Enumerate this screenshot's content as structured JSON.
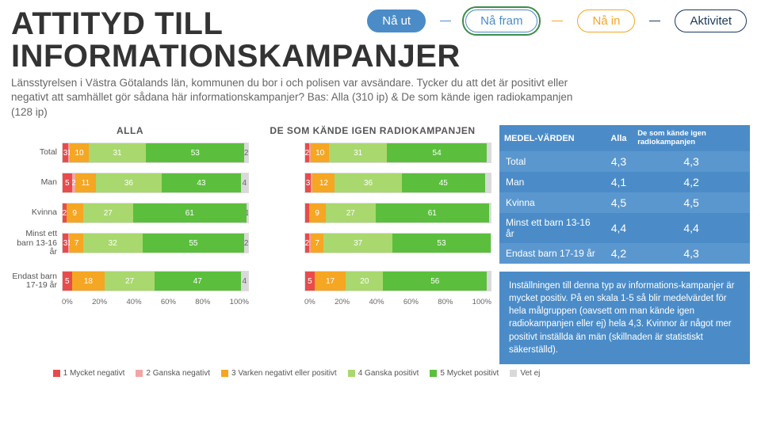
{
  "nav": {
    "out": "Nå ut",
    "fram": "Nå fram",
    "in": "Nå in",
    "akt": "Aktivitet",
    "dash_color": "#4b8cc8"
  },
  "title_line1": "ATTITYD TILL",
  "title_line2": "INFORMATIONSKAMPANJER",
  "intro": "Länsstyrelsen i Västra Götalands län, kommunen du bor i och polisen var avsändare. Tycker du att det är positivt eller negativt att samhället gör sådana här informationskampanjer? Bas: Alla (310 ip) & De som kände igen radiokampanjen (128 ip)",
  "legend": [
    {
      "label": "1 Mycket negativt",
      "color": "#e84b4b"
    },
    {
      "label": "2 Ganska negativt",
      "color": "#f2a6a6"
    },
    {
      "label": "3 Varken negativt eller positivt",
      "color": "#f5a623"
    },
    {
      "label": "4 Ganska positivt",
      "color": "#a9d86e"
    },
    {
      "label": "5 Mycket positivt",
      "color": "#5bbf3d"
    },
    {
      "label": "Vet ej",
      "color": "#d9d9d9"
    }
  ],
  "axis_ticks": [
    "0%",
    "20%",
    "40%",
    "60%",
    "80%",
    "100%"
  ],
  "charts": {
    "left": {
      "title": "ALLA",
      "groups": [
        {
          "label": "Total",
          "segments": [
            {
              "v": 3,
              "c": "#e84b4b",
              "t": "3"
            },
            {
              "v": 1,
              "c": "#f2a6a6",
              "t": "1"
            },
            {
              "v": 10,
              "c": "#f5a623",
              "t": "10"
            },
            {
              "v": 31,
              "c": "#a9d86e",
              "t": "31"
            },
            {
              "v": 53,
              "c": "#5bbf3d",
              "t": "53"
            },
            {
              "v": 2,
              "c": "#d9d9d9",
              "t": "2"
            }
          ]
        },
        {
          "label": "Man",
          "segments": [
            {
              "v": 5,
              "c": "#e84b4b",
              "t": "5"
            },
            {
              "v": 2,
              "c": "#f2a6a6",
              "t": "2"
            },
            {
              "v": 11,
              "c": "#f5a623",
              "t": "11"
            },
            {
              "v": 36,
              "c": "#a9d86e",
              "t": "36"
            },
            {
              "v": 43,
              "c": "#5bbf3d",
              "t": "43"
            },
            {
              "v": 4,
              "c": "#d9d9d9",
              "t": "4"
            }
          ]
        },
        {
          "label": "Kvinna",
          "segments": [
            {
              "v": 2,
              "c": "#e84b4b",
              "t": "2"
            },
            {
              "v": 0,
              "c": "#f2a6a6",
              "t": ""
            },
            {
              "v": 9,
              "c": "#f5a623",
              "t": "9"
            },
            {
              "v": 27,
              "c": "#a9d86e",
              "t": "27"
            },
            {
              "v": 61,
              "c": "#5bbf3d",
              "t": "61"
            },
            {
              "v": 1,
              "c": "#d9d9d9",
              "t": "1"
            }
          ]
        },
        {
          "label": "Minst ett barn 13-16 år",
          "segments": [
            {
              "v": 3,
              "c": "#e84b4b",
              "t": "3"
            },
            {
              "v": 1,
              "c": "#f2a6a6",
              "t": "1"
            },
            {
              "v": 7,
              "c": "#f5a623",
              "t": "7"
            },
            {
              "v": 32,
              "c": "#a9d86e",
              "t": "32"
            },
            {
              "v": 55,
              "c": "#5bbf3d",
              "t": "55"
            },
            {
              "v": 2,
              "c": "#d9d9d9",
              "t": "2"
            }
          ]
        }
      ],
      "group2": [
        {
          "label": "Endast barn 17-19 år",
          "segments": [
            {
              "v": 5,
              "c": "#e84b4b",
              "t": "5"
            },
            {
              "v": 0,
              "c": "#f2a6a6",
              "t": ""
            },
            {
              "v": 18,
              "c": "#f5a623",
              "t": "18"
            },
            {
              "v": 27,
              "c": "#a9d86e",
              "t": "27"
            },
            {
              "v": 47,
              "c": "#5bbf3d",
              "t": "47"
            },
            {
              "v": 4,
              "c": "#d9d9d9",
              "t": "4"
            }
          ]
        }
      ]
    },
    "right": {
      "title": "DE SOM KÄNDE IGEN RADIOKAMPANJEN",
      "groups": [
        {
          "label": "",
          "segments": [
            {
              "v": 2,
              "c": "#e84b4b",
              "t": "2"
            },
            {
              "v": 1,
              "c": "#f2a6a6",
              "t": ""
            },
            {
              "v": 10,
              "c": "#f5a623",
              "t": "10"
            },
            {
              "v": 31,
              "c": "#a9d86e",
              "t": "31"
            },
            {
              "v": 54,
              "c": "#5bbf3d",
              "t": "54"
            },
            {
              "v": 2,
              "c": "#d9d9d9",
              "t": ""
            }
          ]
        },
        {
          "label": "",
          "segments": [
            {
              "v": 3,
              "c": "#e84b4b",
              "t": "3"
            },
            {
              "v": 1,
              "c": "#f2a6a6",
              "t": ""
            },
            {
              "v": 12,
              "c": "#f5a623",
              "t": "12"
            },
            {
              "v": 36,
              "c": "#a9d86e",
              "t": "36"
            },
            {
              "v": 45,
              "c": "#5bbf3d",
              "t": "45"
            },
            {
              "v": 3,
              "c": "#d9d9d9",
              "t": ""
            }
          ]
        },
        {
          "label": "",
          "segments": [
            {
              "v": 2,
              "c": "#e84b4b",
              "t": ""
            },
            {
              "v": 0,
              "c": "#f2a6a6",
              "t": ""
            },
            {
              "v": 9,
              "c": "#f5a623",
              "t": "9"
            },
            {
              "v": 27,
              "c": "#a9d86e",
              "t": "27"
            },
            {
              "v": 61,
              "c": "#5bbf3d",
              "t": "61"
            },
            {
              "v": 1,
              "c": "#d9d9d9",
              "t": ""
            }
          ]
        },
        {
          "label": "",
          "segments": [
            {
              "v": 2,
              "c": "#e84b4b",
              "t": "2"
            },
            {
              "v": 1,
              "c": "#f2a6a6",
              "t": ""
            },
            {
              "v": 7,
              "c": "#f5a623",
              "t": "7"
            },
            {
              "v": 37,
              "c": "#a9d86e",
              "t": "37"
            },
            {
              "v": 53,
              "c": "#5bbf3d",
              "t": "53"
            },
            {
              "v": 0,
              "c": "#d9d9d9",
              "t": ""
            }
          ]
        }
      ],
      "group2": [
        {
          "label": "",
          "segments": [
            {
              "v": 5,
              "c": "#e84b4b",
              "t": "5"
            },
            {
              "v": 0,
              "c": "#f2a6a6",
              "t": ""
            },
            {
              "v": 17,
              "c": "#f5a623",
              "t": "17"
            },
            {
              "v": 20,
              "c": "#a9d86e",
              "t": "20"
            },
            {
              "v": 56,
              "c": "#5bbf3d",
              "t": "56"
            },
            {
              "v": 2,
              "c": "#d9d9d9",
              "t": ""
            }
          ]
        }
      ]
    }
  },
  "means": {
    "head": [
      "MEDEL-VÄRDEN",
      "Alla",
      "De som kände igen radiokampanjen"
    ],
    "rows": [
      [
        "Total",
        "4,3",
        "4,3"
      ],
      [
        "Man",
        "4,1",
        "4,2"
      ],
      [
        "Kvinna",
        "4,5",
        "4,5"
      ],
      [
        "Minst ett barn 13-16 år",
        "4,4",
        "4,4"
      ],
      [
        "Endast barn 17-19 år",
        "4,2",
        "4,3"
      ]
    ]
  },
  "note": "Inställningen till denna typ av informations-kampanjer är mycket positiv. På en skala 1-5 så blir medelvärdet för hela målgruppen (oavsett om man kände igen radiokampanjen eller ej) hela 4,3. Kvinnor är något mer positivt inställda än män (skillnaden är statistiskt säkerställd)."
}
